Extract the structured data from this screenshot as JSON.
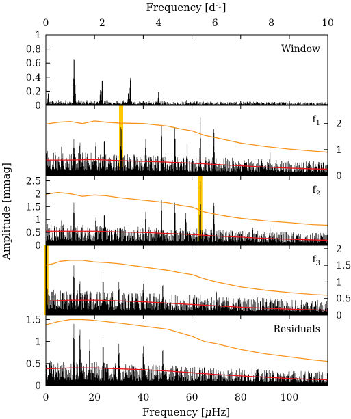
{
  "chart_data": {
    "type": "line",
    "top_axis": {
      "label_text": "Frequency [d",
      "label_exp": "-1",
      "label_close": "]",
      "range": [
        0,
        10
      ],
      "ticks": [
        0,
        2,
        4,
        6,
        8,
        10
      ]
    },
    "xlabel": {
      "text": "Frequency [",
      "mu": "μ",
      "rest": "Hz]"
    },
    "ylabel": "Amplitude [mmag]",
    "xlim": [
      0,
      115.74
    ],
    "xticks": [
      0,
      20,
      40,
      60,
      80,
      100
    ],
    "colors": {
      "spectrum": "#000000",
      "noise_high": "#f7941d",
      "noise_low": "#e8141c",
      "marker": "#ffc800"
    },
    "panels": [
      {
        "label": "Window",
        "label_sub": "",
        "ylim": [
          0,
          1
        ],
        "yticks_left": [
          "1",
          "0.8",
          "0.6",
          "0.4",
          "0.2",
          "0"
        ],
        "ytick_values_left": [
          1,
          0.8,
          0.6,
          0.4,
          0.2,
          0
        ],
        "yticks_right": [],
        "ytick_values_right": [],
        "peaks": [
          [
            11.57,
            0.69
          ],
          [
            12.0,
            0.3
          ],
          [
            23.15,
            0.37
          ],
          [
            22.4,
            0.22
          ],
          [
            34.7,
            0.4
          ],
          [
            33.9,
            0.18
          ],
          [
            46.3,
            0.2
          ],
          [
            1.0,
            0.18
          ],
          [
            57.9,
            0.08
          ]
        ],
        "base_amp": 0.06,
        "decay": true,
        "noise_high": null,
        "noise_low": null,
        "marker": null
      },
      {
        "label": "f",
        "label_sub": "1",
        "ylim": [
          0,
          2.7
        ],
        "yticks_left": [],
        "ytick_values_left": [],
        "yticks_right": [
          "2",
          "1",
          "0"
        ],
        "ytick_values_right": [
          2,
          1,
          0
        ],
        "peaks": [
          [
            30.9,
            1.95
          ],
          [
            63.4,
            2.3
          ],
          [
            11.5,
            1.4
          ],
          [
            47.5,
            1.95
          ],
          [
            53.0,
            1.85
          ],
          [
            69.0,
            1.85
          ],
          [
            41.0,
            1.4
          ],
          [
            24.0,
            1.4
          ],
          [
            20.5,
            1.3
          ],
          [
            6.5,
            1.2
          ],
          [
            14.0,
            1.3
          ],
          [
            58.0,
            1.3
          ],
          [
            92.0,
            1.0
          ]
        ],
        "base_amp": 0.85,
        "decay": false,
        "noise_high": [
          [
            0,
            1.98
          ],
          [
            5,
            2.05
          ],
          [
            10,
            2.08
          ],
          [
            15,
            2.0
          ],
          [
            20,
            2.1
          ],
          [
            25,
            2.05
          ],
          [
            30,
            2.02
          ],
          [
            40,
            2.0
          ],
          [
            50,
            1.9
          ],
          [
            55,
            1.8
          ],
          [
            60,
            1.72
          ],
          [
            65,
            1.55
          ],
          [
            70,
            1.45
          ],
          [
            75,
            1.35
          ],
          [
            80,
            1.25
          ],
          [
            90,
            1.12
          ],
          [
            100,
            1.02
          ],
          [
            110,
            0.94
          ],
          [
            115.74,
            0.9
          ]
        ],
        "noise_low": [
          [
            0,
            0.6
          ],
          [
            10,
            0.6
          ],
          [
            20,
            0.62
          ],
          [
            30,
            0.58
          ],
          [
            40,
            0.55
          ],
          [
            50,
            0.52
          ],
          [
            60,
            0.48
          ],
          [
            70,
            0.43
          ],
          [
            80,
            0.38
          ],
          [
            90,
            0.33
          ],
          [
            100,
            0.29
          ],
          [
            110,
            0.26
          ],
          [
            115.74,
            0.25
          ]
        ],
        "marker": 30.9
      },
      {
        "label": "f",
        "label_sub": "2",
        "ylim": [
          0,
          2.7
        ],
        "yticks_left": [
          "2.5",
          "2",
          "1.5",
          "1",
          "0.5",
          "0"
        ],
        "ytick_values_left": [
          2.5,
          2,
          1.5,
          1,
          0.5,
          0
        ],
        "yticks_right": [],
        "ytick_values_right": [],
        "peaks": [
          [
            63.4,
            2.55
          ],
          [
            11.5,
            1.65
          ],
          [
            47.5,
            1.75
          ],
          [
            53.0,
            1.65
          ],
          [
            69.0,
            1.7
          ],
          [
            24.0,
            1.25
          ],
          [
            41.0,
            1.3
          ],
          [
            20.5,
            1.1
          ],
          [
            6.5,
            1.05
          ],
          [
            57.5,
            1.25
          ],
          [
            92.0,
            0.75
          ],
          [
            85.0,
            0.7
          ]
        ],
        "base_amp": 0.75,
        "decay": false,
        "noise_high": [
          [
            0,
            1.98
          ],
          [
            5,
            2.05
          ],
          [
            10,
            2.0
          ],
          [
            15,
            1.9
          ],
          [
            20,
            1.95
          ],
          [
            25,
            1.92
          ],
          [
            30,
            1.85
          ],
          [
            40,
            1.75
          ],
          [
            50,
            1.65
          ],
          [
            55,
            1.55
          ],
          [
            60,
            1.48
          ],
          [
            65,
            1.3
          ],
          [
            70,
            1.2
          ],
          [
            75,
            1.12
          ],
          [
            80,
            1.05
          ],
          [
            90,
            0.95
          ],
          [
            100,
            0.88
          ],
          [
            110,
            0.8
          ],
          [
            115.74,
            0.78
          ]
        ],
        "noise_low": [
          [
            0,
            0.55
          ],
          [
            10,
            0.55
          ],
          [
            20,
            0.55
          ],
          [
            30,
            0.52
          ],
          [
            40,
            0.5
          ],
          [
            50,
            0.46
          ],
          [
            60,
            0.42
          ],
          [
            70,
            0.36
          ],
          [
            80,
            0.32
          ],
          [
            90,
            0.27
          ],
          [
            100,
            0.24
          ],
          [
            110,
            0.21
          ],
          [
            115.74,
            0.2
          ]
        ],
        "marker": 63.4
      },
      {
        "label": "f",
        "label_sub": "3",
        "ylim": [
          0,
          2.1
        ],
        "yticks_left": [],
        "ytick_values_left": [],
        "yticks_right": [
          "2",
          "1.5",
          "1",
          "0.5",
          "0"
        ],
        "ytick_values_right": [
          2,
          1.5,
          1,
          0.5,
          0
        ],
        "peaks": [
          [
            0.2,
            2.1
          ],
          [
            11.5,
            1.5
          ],
          [
            23.5,
            1.3
          ],
          [
            14.0,
            1.05
          ],
          [
            30.0,
            1.0
          ],
          [
            40.0,
            0.95
          ],
          [
            48.0,
            0.95
          ],
          [
            92.0,
            0.6
          ],
          [
            70.0,
            0.75
          ]
        ],
        "base_amp": 0.7,
        "decay": false,
        "noise_high": [
          [
            0,
            1.5
          ],
          [
            3,
            1.55
          ],
          [
            6,
            1.62
          ],
          [
            10,
            1.65
          ],
          [
            15,
            1.65
          ],
          [
            20,
            1.6
          ],
          [
            25,
            1.58
          ],
          [
            30,
            1.55
          ],
          [
            40,
            1.45
          ],
          [
            50,
            1.35
          ],
          [
            55,
            1.28
          ],
          [
            60,
            1.22
          ],
          [
            65,
            1.1
          ],
          [
            70,
            1.0
          ],
          [
            80,
            0.85
          ],
          [
            90,
            0.75
          ],
          [
            100,
            0.68
          ],
          [
            110,
            0.62
          ],
          [
            115.74,
            0.6
          ]
        ],
        "noise_low": [
          [
            0,
            0.42
          ],
          [
            10,
            0.45
          ],
          [
            20,
            0.45
          ],
          [
            30,
            0.43
          ],
          [
            40,
            0.4
          ],
          [
            50,
            0.36
          ],
          [
            60,
            0.32
          ],
          [
            70,
            0.28
          ],
          [
            80,
            0.24
          ],
          [
            90,
            0.21
          ],
          [
            100,
            0.18
          ],
          [
            110,
            0.16
          ],
          [
            115.74,
            0.15
          ]
        ],
        "marker": 0.2
      },
      {
        "label": "Residuals",
        "label_sub": "",
        "ylim": [
          0,
          1.6
        ],
        "yticks_left": [
          "1.5",
          "1",
          "0.5",
          "0"
        ],
        "ytick_values_left": [
          1.5,
          1,
          0.5,
          0
        ],
        "yticks_right": [],
        "ytick_values_right": [],
        "peaks": [
          [
            11.5,
            1.4
          ],
          [
            14.0,
            1.3
          ],
          [
            23.5,
            1.15
          ],
          [
            18.0,
            1.05
          ],
          [
            30.0,
            0.95
          ],
          [
            40.0,
            0.9
          ],
          [
            48.0,
            0.85
          ]
        ],
        "base_amp": 0.5,
        "decay": false,
        "noise_high": [
          [
            0,
            1.38
          ],
          [
            5,
            1.45
          ],
          [
            10,
            1.5
          ],
          [
            15,
            1.5
          ],
          [
            20,
            1.48
          ],
          [
            25,
            1.45
          ],
          [
            30,
            1.42
          ],
          [
            40,
            1.35
          ],
          [
            50,
            1.28
          ],
          [
            55,
            1.2
          ],
          [
            60,
            1.12
          ],
          [
            65,
            1.0
          ],
          [
            70,
            0.95
          ],
          [
            80,
            0.82
          ],
          [
            90,
            0.72
          ],
          [
            100,
            0.65
          ],
          [
            110,
            0.58
          ],
          [
            115.74,
            0.55
          ]
        ],
        "noise_low": [
          [
            0,
            0.38
          ],
          [
            10,
            0.4
          ],
          [
            20,
            0.4
          ],
          [
            30,
            0.38
          ],
          [
            40,
            0.36
          ],
          [
            50,
            0.33
          ],
          [
            60,
            0.29
          ],
          [
            70,
            0.25
          ],
          [
            80,
            0.22
          ],
          [
            90,
            0.19
          ],
          [
            100,
            0.16
          ],
          [
            110,
            0.14
          ],
          [
            115.74,
            0.13
          ]
        ],
        "marker": null
      }
    ]
  }
}
